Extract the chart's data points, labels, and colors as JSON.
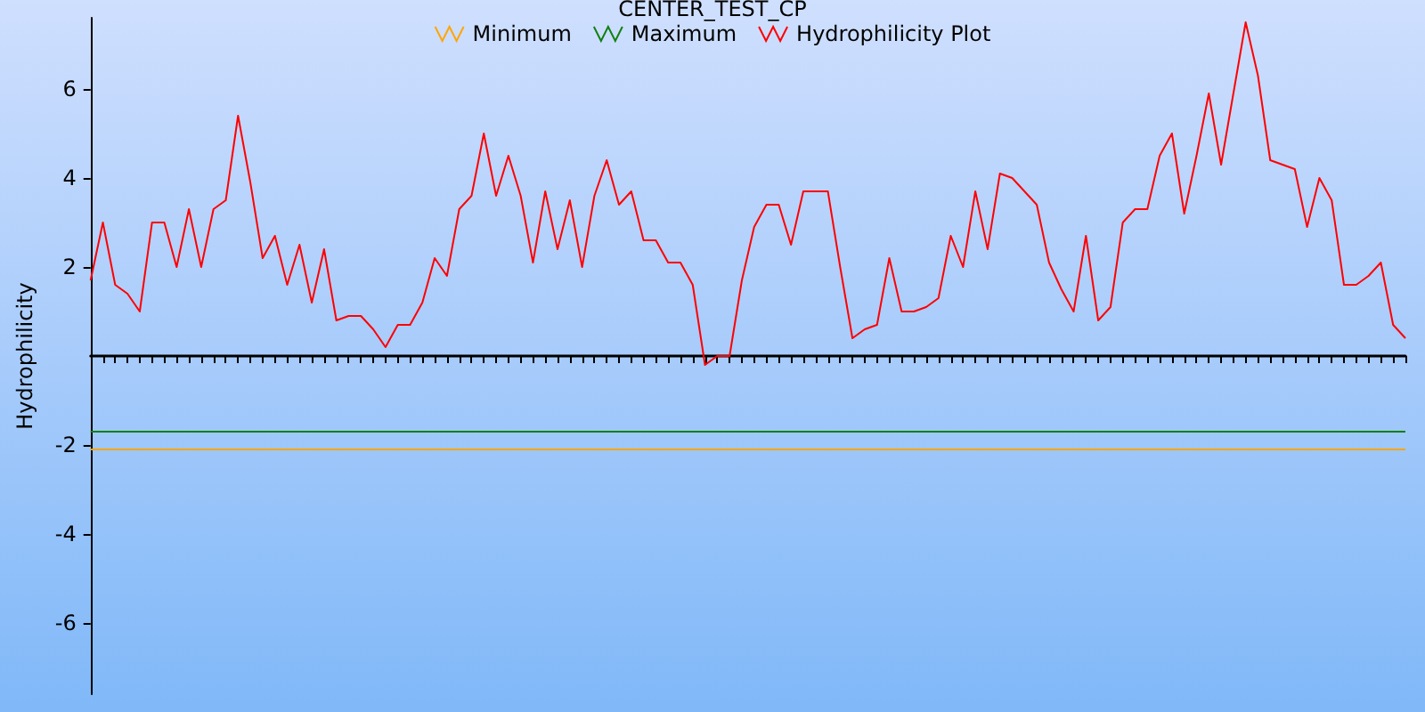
{
  "chart_data": {
    "type": "line",
    "title": "CENTER_TEST_CP",
    "ylabel": "Hydrophilicity",
    "categories": [
      null,
      null,
      null,
      null,
      null,
      null,
      null,
      null,
      null,
      null,
      null,
      null,
      null,
      null,
      null,
      null,
      null,
      null,
      null,
      null,
      null,
      null,
      null,
      null,
      null,
      null,
      null,
      null,
      null,
      null,
      null,
      null,
      null,
      null,
      null,
      null,
      null,
      null,
      null,
      null,
      null,
      null,
      null,
      null,
      null,
      null,
      null,
      null,
      null,
      null,
      null,
      null,
      null,
      null,
      null,
      null,
      null,
      null,
      null,
      null,
      null,
      null,
      null,
      null,
      null,
      null,
      null,
      null,
      null,
      null,
      null,
      null,
      null,
      null,
      null,
      null,
      null,
      null,
      null,
      null,
      null,
      null,
      null,
      null,
      null,
      null,
      null,
      null,
      null,
      null,
      null,
      null,
      null,
      null,
      null,
      null,
      null,
      null,
      null,
      null,
      null,
      null,
      null,
      null,
      null,
      null,
      null,
      null
    ],
    "series": [
      {
        "name": "Minimum",
        "color": "#ffa500",
        "values": [
          -2.1,
          -2.1,
          -2.1,
          -2.1,
          -2.1,
          -2.1,
          -2.1,
          -2.1,
          -2.1,
          -2.1,
          -2.1,
          -2.1,
          -2.1,
          -2.1,
          -2.1,
          -2.1,
          -2.1,
          -2.1,
          -2.1,
          -2.1,
          -2.1,
          -2.1,
          -2.1,
          -2.1,
          -2.1,
          -2.1,
          -2.1,
          -2.1,
          -2.1,
          -2.1,
          -2.1,
          -2.1,
          -2.1,
          -2.1,
          -2.1,
          -2.1,
          -2.1,
          -2.1,
          -2.1,
          -2.1,
          -2.1,
          -2.1,
          -2.1,
          -2.1,
          -2.1,
          -2.1,
          -2.1,
          -2.1,
          -2.1,
          -2.1,
          -2.1,
          -2.1,
          -2.1,
          -2.1,
          -2.1,
          -2.1,
          -2.1,
          -2.1,
          -2.1,
          -2.1,
          -2.1,
          -2.1,
          -2.1,
          -2.1,
          -2.1,
          -2.1,
          -2.1,
          -2.1,
          -2.1,
          -2.1,
          -2.1,
          -2.1,
          -2.1,
          -2.1,
          -2.1,
          -2.1,
          -2.1,
          -2.1,
          -2.1,
          -2.1,
          -2.1,
          -2.1,
          -2.1,
          -2.1,
          -2.1,
          -2.1,
          -2.1,
          -2.1,
          -2.1,
          -2.1,
          -2.1,
          -2.1,
          -2.1,
          -2.1,
          -2.1,
          -2.1,
          -2.1,
          -2.1,
          -2.1,
          -2.1,
          -2.1,
          -2.1,
          -2.1,
          -2.1,
          -2.1,
          -2.1,
          -2.1,
          -2.1
        ]
      },
      {
        "name": "Maximum",
        "color": "#118011",
        "values": [
          -1.7,
          -1.7,
          -1.7,
          -1.7,
          -1.7,
          -1.7,
          -1.7,
          -1.7,
          -1.7,
          -1.7,
          -1.7,
          -1.7,
          -1.7,
          -1.7,
          -1.7,
          -1.7,
          -1.7,
          -1.7,
          -1.7,
          -1.7,
          -1.7,
          -1.7,
          -1.7,
          -1.7,
          -1.7,
          -1.7,
          -1.7,
          -1.7,
          -1.7,
          -1.7,
          -1.7,
          -1.7,
          -1.7,
          -1.7,
          -1.7,
          -1.7,
          -1.7,
          -1.7,
          -1.7,
          -1.7,
          -1.7,
          -1.7,
          -1.7,
          -1.7,
          -1.7,
          -1.7,
          -1.7,
          -1.7,
          -1.7,
          -1.7,
          -1.7,
          -1.7,
          -1.7,
          -1.7,
          -1.7,
          -1.7,
          -1.7,
          -1.7,
          -1.7,
          -1.7,
          -1.7,
          -1.7,
          -1.7,
          -1.7,
          -1.7,
          -1.7,
          -1.7,
          -1.7,
          -1.7,
          -1.7,
          -1.7,
          -1.7,
          -1.7,
          -1.7,
          -1.7,
          -1.7,
          -1.7,
          -1.7,
          -1.7,
          -1.7,
          -1.7,
          -1.7,
          -1.7,
          -1.7,
          -1.7,
          -1.7,
          -1.7,
          -1.7,
          -1.7,
          -1.7,
          -1.7,
          -1.7,
          -1.7,
          -1.7,
          -1.7,
          -1.7,
          -1.7,
          -1.7,
          -1.7,
          -1.7,
          -1.7,
          -1.7,
          -1.7,
          -1.7,
          -1.7,
          -1.7,
          -1.7,
          -1.7
        ]
      },
      {
        "name": "Hydrophilicity Plot",
        "color": "#ff0000",
        "values": [
          1.7,
          3.0,
          1.6,
          1.4,
          1.0,
          3.0,
          3.0,
          2.0,
          3.3,
          2.0,
          3.3,
          3.5,
          5.4,
          3.9,
          2.2,
          2.7,
          1.6,
          2.5,
          1.2,
          2.4,
          0.8,
          0.9,
          0.9,
          0.6,
          0.2,
          0.7,
          0.7,
          1.2,
          2.2,
          1.8,
          3.3,
          3.6,
          5.0,
          3.6,
          4.5,
          3.6,
          2.1,
          3.7,
          2.4,
          3.5,
          2.0,
          3.6,
          4.4,
          3.4,
          3.7,
          2.6,
          2.6,
          2.1,
          2.1,
          1.6,
          -0.2,
          0.0,
          0.0,
          1.7,
          2.9,
          3.4,
          3.4,
          2.5,
          3.7,
          3.7,
          3.7,
          2.0,
          0.4,
          0.6,
          0.7,
          2.2,
          1.0,
          1.0,
          1.1,
          1.3,
          2.7,
          2.0,
          3.7,
          2.4,
          4.1,
          4.0,
          3.7,
          3.4,
          2.1,
          1.5,
          1.0,
          2.7,
          0.8,
          1.1,
          3.0,
          3.3,
          3.3,
          4.5,
          5.0,
          3.2,
          4.5,
          5.9,
          4.3,
          5.9,
          7.5,
          6.3,
          4.4,
          4.3,
          4.2,
          2.9,
          4.0,
          3.5,
          1.6,
          1.6,
          1.8,
          2.1,
          0.7,
          0.4
        ]
      }
    ],
    "ylim": [
      -7.6,
      7.6
    ],
    "yticks": [
      -6,
      -4,
      -2,
      2,
      4,
      6
    ],
    "tick_labels": "y",
    "legend": "top",
    "grid": false,
    "line_style": "solid"
  }
}
